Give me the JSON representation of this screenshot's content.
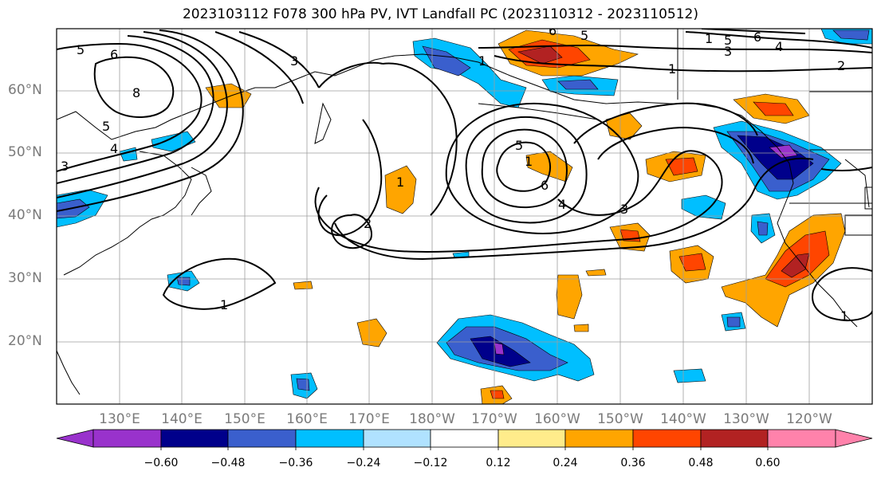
{
  "title": "2023103112 F078 300 hPa PV, IVT Landfall PC (2023110312 - 2023110512)",
  "lat_labels": [
    "60°N",
    "50°N",
    "40°N",
    "30°N",
    "20°N"
  ],
  "lon_labels": [
    "130°E",
    "140°E",
    "150°E",
    "160°E",
    "170°E",
    "180°W",
    "170°W",
    "160°W",
    "150°W",
    "140°W",
    "130°W",
    "120°W"
  ],
  "contour_labels": [
    "5",
    "6",
    "3",
    "8",
    "5",
    "4",
    "3",
    "1",
    "5",
    "6",
    "1",
    "1",
    "5",
    "3",
    "6",
    "4",
    "2",
    "1",
    "1",
    "5",
    "6",
    "4",
    "3",
    "2",
    "1",
    "1"
  ],
  "colorbar": {
    "tick_labels": [
      "−0.60",
      "−0.48",
      "−0.36",
      "−0.24",
      "−0.12",
      "0.12",
      "0.24",
      "0.36",
      "0.48",
      "0.60"
    ],
    "colors": [
      "#9932cc",
      "#00008b",
      "#3a5fcd",
      "#00bfff",
      "#b0e2ff",
      "#ffffff",
      "#ffec8b",
      "#ffa500",
      "#ff4500",
      "#b22222",
      "#ff82ab"
    ]
  }
}
